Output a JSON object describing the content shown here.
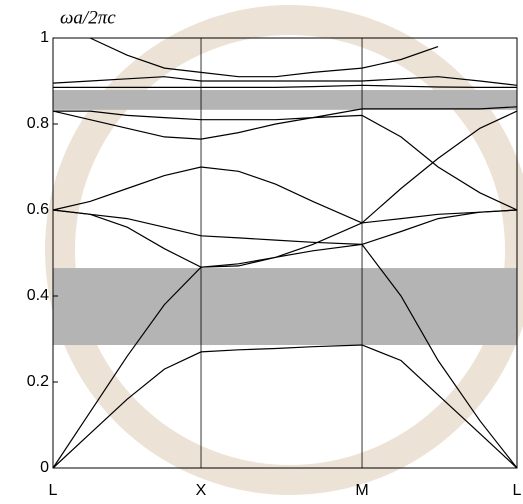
{
  "chart_data": {
    "type": "line",
    "ylabel": "ωa/2πc",
    "x": [
      0,
      0.08,
      0.16,
      0.24,
      0.319,
      0.4,
      0.48,
      0.56,
      0.666,
      0.75,
      0.83,
      0.92,
      1
    ],
    "xlim": [
      0,
      1
    ],
    "xticks": [
      {
        "value": 0,
        "label": "L"
      },
      {
        "value": 0.319,
        "label": "X"
      },
      {
        "value": 0.666,
        "label": "M"
      },
      {
        "value": 1,
        "label": "L"
      }
    ],
    "ylim": [
      0,
      1
    ],
    "yticks": [
      0,
      0.2,
      0.4,
      0.6,
      0.8,
      1
    ],
    "grid": true,
    "band_gaps": [
      [
        0.286,
        0.465
      ],
      [
        0.833,
        0.879
      ]
    ],
    "gap_color": "#b4b4b4",
    "series": [
      {
        "color": "#000000",
        "values": [
          0,
          0.08,
          0.16,
          0.23,
          0.27,
          0.275,
          0.278,
          0.282,
          0.286,
          0.25,
          0.17,
          0.08,
          0
        ]
      },
      {
        "color": "#000000",
        "values": [
          0,
          0.13,
          0.26,
          0.38,
          0.467,
          0.475,
          0.49,
          0.505,
          0.52,
          0.4,
          0.25,
          0.11,
          0
        ]
      },
      {
        "color": "#000000",
        "values": [
          0.6,
          0.59,
          0.56,
          0.51,
          0.467,
          0.47,
          0.49,
          0.52,
          0.57,
          0.58,
          0.59,
          0.595,
          0.6
        ]
      },
      {
        "color": "#000000",
        "values": [
          0.6,
          0.59,
          0.58,
          0.56,
          0.54,
          0.535,
          0.53,
          0.525,
          0.52,
          0.55,
          0.58,
          0.595,
          0.6
        ]
      },
      {
        "color": "#000000",
        "values": [
          0.6,
          0.62,
          0.65,
          0.68,
          0.7,
          0.69,
          0.66,
          0.62,
          0.57,
          0.65,
          0.72,
          0.79,
          0.83
        ]
      },
      {
        "color": "#000000",
        "values": [
          0.83,
          0.81,
          0.79,
          0.77,
          0.765,
          0.78,
          0.8,
          0.815,
          0.82,
          0.77,
          0.7,
          0.64,
          0.6
        ]
      },
      {
        "color": "#000000",
        "values": [
          0.83,
          0.83,
          0.82,
          0.815,
          0.81,
          0.81,
          0.81,
          0.815,
          0.835,
          0.835,
          0.835,
          0.835,
          0.84
        ]
      },
      {
        "color": "#000000",
        "values": [
          0.885,
          0.885,
          0.885,
          0.885,
          0.885,
          0.885,
          0.885,
          0.887,
          0.89,
          0.888,
          0.886,
          0.885,
          0.885
        ]
      },
      {
        "color": "#000000",
        "values": [
          0.895,
          0.9,
          0.905,
          0.91,
          0.9,
          0.9,
          0.9,
          0.9,
          0.9,
          0.905,
          0.91,
          0.9,
          0.89
        ]
      },
      {
        "color": "#000000",
        "values": [
          null,
          1.0,
          0.96,
          0.93,
          0.92,
          0.91,
          0.91,
          0.92,
          0.93,
          0.95,
          0.98,
          null,
          null
        ]
      }
    ]
  }
}
